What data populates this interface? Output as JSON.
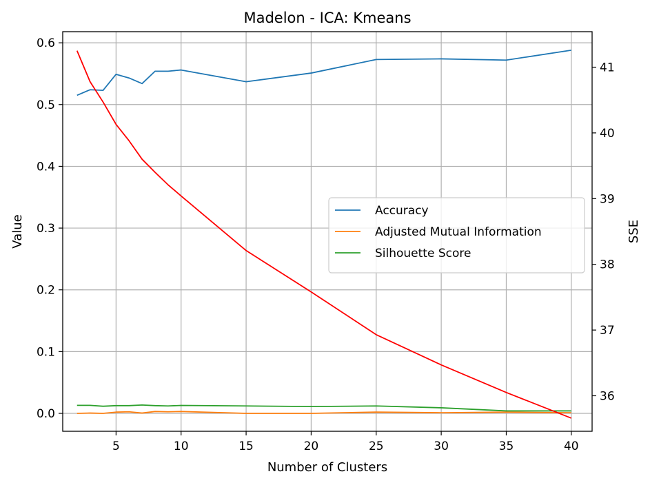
{
  "chart_data": {
    "type": "line",
    "title": "Madelon - ICA: Kmeans",
    "xlabel": "Number of Clusters",
    "ylabel": "Value",
    "y2label": "SSE",
    "x": [
      2,
      3,
      4,
      5,
      6,
      7,
      8,
      9,
      10,
      15,
      20,
      25,
      30,
      35,
      40
    ],
    "xlim": [
      0.9,
      41.6
    ],
    "ylim": [
      -0.029,
      0.618
    ],
    "y2lim": [
      35.46,
      41.54
    ],
    "xticks": [
      5,
      10,
      15,
      20,
      25,
      30,
      35,
      40
    ],
    "yticks": [
      0.0,
      0.1,
      0.2,
      0.3,
      0.4,
      0.5,
      0.6
    ],
    "y2ticks": [
      36,
      37,
      38,
      39,
      40,
      41
    ],
    "grid": true,
    "legend_position": "center-right",
    "series": [
      {
        "name": "Accuracy",
        "axis": "left",
        "color": "#1f77b4",
        "values": [
          0.515,
          0.524,
          0.523,
          0.549,
          0.543,
          0.534,
          0.554,
          0.554,
          0.556,
          0.537,
          0.551,
          0.573,
          0.574,
          0.572,
          0.588
        ]
      },
      {
        "name": "Adjusted Mutual Information",
        "axis": "left",
        "color": "#ff7f0e",
        "values": [
          0.0,
          0.0005,
          0.0,
          0.002,
          0.0025,
          0.0005,
          0.003,
          0.0025,
          0.003,
          0.0,
          0.0,
          0.002,
          0.001,
          0.002,
          0.001
        ]
      },
      {
        "name": "Silhouette Score",
        "axis": "left",
        "color": "#2ca02c",
        "values": [
          0.013,
          0.013,
          0.0115,
          0.0125,
          0.0125,
          0.0135,
          0.0125,
          0.012,
          0.0128,
          0.012,
          0.011,
          0.012,
          0.009,
          0.004,
          0.004
        ]
      },
      {
        "axis": "right",
        "color": "#ff0000",
        "values": [
          41.25,
          40.78,
          40.47,
          40.13,
          39.88,
          39.6,
          39.4,
          39.21,
          39.04,
          38.21,
          37.58,
          36.93,
          36.47,
          36.05,
          35.66
        ]
      }
    ]
  }
}
